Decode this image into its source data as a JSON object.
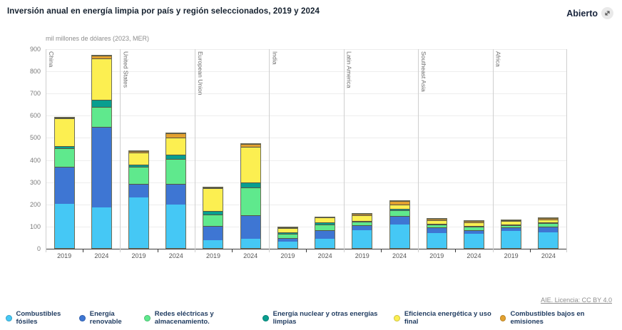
{
  "header": {
    "title": "Inversión anual en energía limpia por país y región seleccionados, 2019 y 2024",
    "open_button_label": "Abierto",
    "open_button_icon": "expand-icon"
  },
  "footer": {
    "attribution": "AIE. Licencia: CC BY 4.0"
  },
  "chart_data": {
    "type": "bar",
    "stacked": true,
    "title": "Inversión anual en energía limpia por país y región seleccionados, 2019 y 2024",
    "ylabel": "mil millones de dólares (2023, MER)",
    "ylim": [
      0,
      900
    ],
    "ytick_step": 100,
    "grid": true,
    "legend_position": "bottom",
    "regions": [
      "China",
      "United States",
      "European Union",
      "India",
      "Latin America",
      "Southeast Asia",
      "Africa"
    ],
    "years": [
      "2019",
      "2024"
    ],
    "series": [
      {
        "name": "Combustibles fósiles",
        "color": "#45c8f5",
        "values": {
          "2019": [
            200,
            228,
            35,
            28,
            81,
            67,
            76
          ],
          "2024": [
            183,
            196,
            42,
            42,
            106,
            64,
            71
          ]
        }
      },
      {
        "name": "Energía renovable",
        "color": "#3e76d3",
        "values": {
          "2019": [
            163,
            58,
            61,
            15,
            19,
            22,
            13
          ],
          "2024": [
            360,
            90,
            103,
            35,
            35,
            14,
            22
          ]
        }
      },
      {
        "name": "Redes eléctricas y almacenamiento.",
        "color": "#5fe98d",
        "values": {
          "2019": [
            81,
            74,
            48,
            15,
            12,
            11,
            8
          ],
          "2024": [
            87,
            109,
            122,
            23,
            23,
            11,
            13
          ]
        }
      },
      {
        "name": "Energía nuclear y otras energías limpias",
        "color": "#089e8f",
        "values": {
          "2019": [
            6,
            7,
            13,
            3,
            2,
            1,
            1
          ],
          "2024": [
            29,
            17,
            19,
            6,
            2,
            1,
            1
          ]
        }
      },
      {
        "name": "Eficiencia energética y uso final",
        "color": "#fcef51",
        "values": {
          "2019": [
            122,
            51,
            99,
            15,
            22,
            12,
            12
          ],
          "2024": [
            183,
            74,
            158,
            19,
            16,
            13,
            10
          ]
        }
      },
      {
        "name": "Combustibles bajos en emisiones",
        "color": "#e3a12f",
        "values": {
          "2019": [
            1,
            3,
            2,
            1,
            4,
            4,
            1
          ],
          "2024": [
            10,
            16,
            9,
            0,
            13,
            3,
            1
          ]
        }
      }
    ],
    "totals": {
      "2019": [
        573,
        421,
        258,
        77,
        140,
        117,
        111
      ],
      "2024": [
        852,
        502,
        453,
        125,
        195,
        106,
        118
      ]
    }
  }
}
